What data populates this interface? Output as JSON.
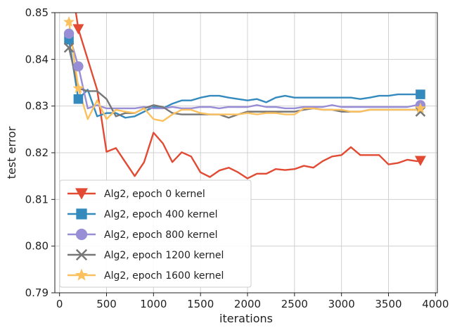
{
  "chart_data": {
    "type": "line",
    "xlabel": "iterations",
    "ylabel": "test error",
    "xlim": [
      -50,
      4020
    ],
    "ylim": [
      0.79,
      0.85
    ],
    "xticks": [
      0,
      500,
      1000,
      1500,
      2000,
      2500,
      3000,
      3500,
      4000
    ],
    "yticks": [
      0.79,
      0.8,
      0.81,
      0.82,
      0.83,
      0.84,
      0.85
    ],
    "xtick_labels": [
      "0",
      "500",
      "1000",
      "1500",
      "2000",
      "2500",
      "3000",
      "3500",
      "4000"
    ],
    "ytick_labels": [
      "0.79",
      "0.80",
      "0.81",
      "0.82",
      "0.83",
      "0.84",
      "0.85"
    ],
    "grid": true,
    "legend_position": "bottom-left",
    "series": [
      {
        "name": "Alg2, epoch 0 kernel",
        "color": "#e24a33",
        "marker": "triangle-down",
        "x": [
          100,
          200,
          300,
          400,
          500,
          600,
          700,
          800,
          900,
          1000,
          1100,
          1200,
          1300,
          1400,
          1500,
          1600,
          1700,
          1800,
          1900,
          2000,
          2100,
          2200,
          2300,
          2400,
          2500,
          2600,
          2700,
          2800,
          2900,
          3000,
          3100,
          3200,
          3300,
          3400,
          3500,
          3600,
          3700,
          3800,
          3840
        ],
        "y": [
          0.86,
          0.8465,
          0.84,
          0.8335,
          0.8202,
          0.821,
          0.818,
          0.815,
          0.818,
          0.8243,
          0.822,
          0.818,
          0.8201,
          0.8192,
          0.8158,
          0.8148,
          0.8162,
          0.8168,
          0.8158,
          0.8145,
          0.8155,
          0.8155,
          0.8165,
          0.8163,
          0.8165,
          0.8172,
          0.8168,
          0.8182,
          0.8192,
          0.8195,
          0.8212,
          0.8195,
          0.8195,
          0.8195,
          0.8175,
          0.8178,
          0.8185,
          0.8182,
          0.8183
        ],
        "marker_x": [
          200,
          3840
        ],
        "marker_y": [
          0.8465,
          0.8183
        ]
      },
      {
        "name": "Alg2, epoch 400 kernel",
        "color": "#348abd",
        "marker": "square",
        "x": [
          100,
          200,
          300,
          400,
          500,
          600,
          700,
          800,
          900,
          1000,
          1100,
          1200,
          1300,
          1400,
          1500,
          1600,
          1700,
          1800,
          1900,
          2000,
          2100,
          2200,
          2300,
          2400,
          2500,
          2600,
          2700,
          2800,
          2900,
          3000,
          3100,
          3200,
          3300,
          3400,
          3500,
          3600,
          3700,
          3800,
          3840
        ],
        "y": [
          0.8442,
          0.8315,
          0.8335,
          0.8278,
          0.8285,
          0.8285,
          0.8275,
          0.8278,
          0.8288,
          0.8298,
          0.8295,
          0.8305,
          0.8312,
          0.8312,
          0.8318,
          0.8322,
          0.8322,
          0.8318,
          0.8315,
          0.8312,
          0.8315,
          0.8308,
          0.8318,
          0.8322,
          0.8318,
          0.8318,
          0.8318,
          0.8318,
          0.8318,
          0.8318,
          0.8318,
          0.8315,
          0.8318,
          0.8322,
          0.8322,
          0.8325,
          0.8325,
          0.8325,
          0.8325
        ],
        "marker_x": [
          100,
          200,
          3840
        ],
        "marker_y": [
          0.8442,
          0.8315,
          0.8325
        ]
      },
      {
        "name": "Alg2, epoch 800 kernel",
        "color": "#988ed5",
        "marker": "circle",
        "x": [
          100,
          200,
          300,
          400,
          500,
          600,
          700,
          800,
          900,
          1000,
          1100,
          1200,
          1300,
          1400,
          1500,
          1600,
          1700,
          1800,
          1900,
          2000,
          2100,
          2200,
          2300,
          2400,
          2500,
          2600,
          2700,
          2800,
          2900,
          3000,
          3100,
          3200,
          3300,
          3400,
          3500,
          3600,
          3700,
          3800,
          3840
        ],
        "y": [
          0.8455,
          0.8385,
          0.8295,
          0.8302,
          0.8295,
          0.8295,
          0.8295,
          0.8295,
          0.8298,
          0.8295,
          0.8295,
          0.8298,
          0.8295,
          0.8295,
          0.8298,
          0.8298,
          0.8295,
          0.8298,
          0.8298,
          0.8298,
          0.8302,
          0.8298,
          0.8298,
          0.8295,
          0.8295,
          0.8298,
          0.8298,
          0.8298,
          0.8302,
          0.8298,
          0.8298,
          0.8298,
          0.8298,
          0.8298,
          0.8298,
          0.8298,
          0.8298,
          0.8302,
          0.8302
        ],
        "marker_x": [
          100,
          200,
          3840
        ],
        "marker_y": [
          0.8455,
          0.8385,
          0.8302
        ]
      },
      {
        "name": "Alg2, epoch 1200 kernel",
        "color": "#777777",
        "marker": "x",
        "x": [
          100,
          200,
          300,
          400,
          500,
          600,
          700,
          800,
          900,
          1000,
          1100,
          1200,
          1300,
          1400,
          1500,
          1600,
          1700,
          1800,
          1900,
          2000,
          2100,
          2200,
          2300,
          2400,
          2500,
          2600,
          2700,
          2800,
          2900,
          3000,
          3100,
          3200,
          3300,
          3400,
          3500,
          3600,
          3700,
          3800,
          3840
        ],
        "y": [
          0.8425,
          0.8338,
          0.8332,
          0.8332,
          0.8315,
          0.8278,
          0.8285,
          0.8285,
          0.8295,
          0.8302,
          0.8298,
          0.8285,
          0.8282,
          0.8282,
          0.8282,
          0.8282,
          0.8282,
          0.8275,
          0.8282,
          0.8288,
          0.8288,
          0.8288,
          0.8288,
          0.8288,
          0.8288,
          0.8292,
          0.8295,
          0.8292,
          0.8292,
          0.8288,
          0.8288,
          0.8288,
          0.8292,
          0.8292,
          0.8292,
          0.8292,
          0.8292,
          0.8292,
          0.8288
        ],
        "marker_x": [
          100,
          3840
        ],
        "marker_y": [
          0.8425,
          0.8288
        ]
      },
      {
        "name": "Alg2, epoch 1600 kernel",
        "color": "#fbc15e",
        "marker": "star",
        "x": [
          100,
          200,
          300,
          400,
          500,
          600,
          700,
          800,
          900,
          1000,
          1100,
          1200,
          1300,
          1400,
          1500,
          1600,
          1700,
          1800,
          1900,
          2000,
          2100,
          2200,
          2300,
          2400,
          2500,
          2600,
          2700,
          2800,
          2900,
          3000,
          3100,
          3200,
          3300,
          3400,
          3500,
          3600,
          3700,
          3800,
          3840
        ],
        "y": [
          0.848,
          0.8338,
          0.8272,
          0.8312,
          0.8272,
          0.8292,
          0.8288,
          0.8285,
          0.8295,
          0.8272,
          0.8268,
          0.8282,
          0.8292,
          0.8292,
          0.8285,
          0.8282,
          0.8282,
          0.8282,
          0.8282,
          0.8285,
          0.8282,
          0.8285,
          0.8285,
          0.8282,
          0.8282,
          0.8295,
          0.8295,
          0.8292,
          0.8292,
          0.8292,
          0.8288,
          0.8288,
          0.8292,
          0.8292,
          0.8292,
          0.8292,
          0.8292,
          0.8292,
          0.8295
        ],
        "marker_x": [
          100,
          200,
          3840
        ],
        "marker_y": [
          0.848,
          0.8338,
          0.8295
        ]
      }
    ]
  }
}
